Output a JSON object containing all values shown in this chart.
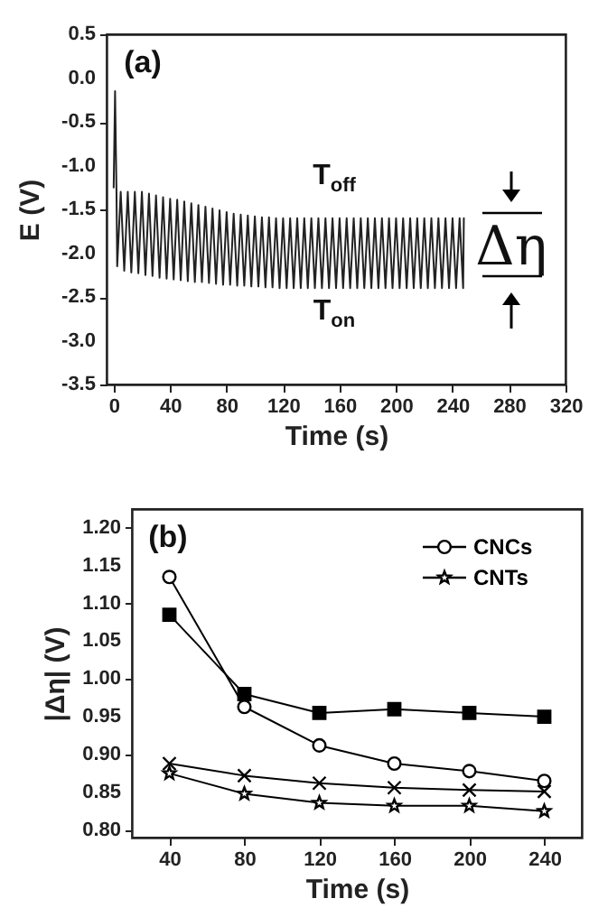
{
  "chart_data": [
    {
      "type": "line",
      "xlabel": "Time (s)",
      "ylabel": "E (V)",
      "xlim": [
        -5,
        320
      ],
      "ylim": [
        -3.5,
        0.5
      ],
      "xticks": [
        0,
        40,
        80,
        120,
        160,
        200,
        240,
        280,
        320
      ],
      "yticks": [
        -3.5,
        {
          "value": -3,
          "label": "-3.0"
        },
        -2.5,
        {
          "value": -2,
          "label": "-2.0"
        },
        -1.5,
        {
          "value": -1,
          "label": "-1.0"
        },
        -0.5,
        {
          "value": 0,
          "label": "0.0"
        },
        0.5
      ],
      "annotations": [
        "(a)",
        "T$_{off}$",
        "T$_{on}$",
        "Δη"
      ],
      "series": [
        {
          "color": "#222222",
          "x": [
            0,
            1,
            2,
            2.5,
            5,
            7.5,
            10,
            12.5,
            15,
            17.5,
            20,
            22.5,
            25,
            27.5,
            30,
            32.5,
            35,
            37.5,
            40,
            42.5,
            45,
            47.5,
            50,
            52.5,
            55,
            57.5,
            60,
            62.5,
            65,
            67.5,
            70,
            72.5,
            75,
            77.5,
            80,
            82.5,
            85,
            87.5,
            90,
            92.5,
            95,
            97.5,
            100,
            102.5,
            105,
            107.5,
            110,
            112.5,
            115,
            117.5,
            120,
            122.5,
            125,
            127.5,
            130,
            132.5,
            135,
            137.5,
            140,
            142.5,
            145,
            147.5,
            150,
            152.5,
            155,
            157.5,
            160,
            162.5,
            165,
            167.5,
            170,
            172.5,
            175,
            177.5,
            180,
            182.5,
            185,
            187.5,
            190,
            192.5,
            195,
            197.5,
            200,
            202.5,
            205,
            207.5,
            210,
            212.5,
            215,
            217.5,
            220,
            222.5,
            225,
            227.5,
            230,
            232.5,
            235,
            237.5,
            240,
            242.5,
            245,
            247.5,
            248
          ],
          "values": [
            -1.25,
            -0.15,
            -1.3,
            -2.15,
            -1.3,
            -2.2,
            -1.3,
            -2.22,
            -1.3,
            -2.23,
            -1.3,
            -2.25,
            -1.32,
            -2.26,
            -1.34,
            -2.28,
            -1.36,
            -2.29,
            -1.38,
            -2.3,
            -1.39,
            -2.31,
            -1.41,
            -2.32,
            -1.43,
            -2.33,
            -1.45,
            -2.33,
            -1.47,
            -2.34,
            -1.49,
            -2.35,
            -1.51,
            -2.36,
            -1.53,
            -2.36,
            -1.55,
            -2.37,
            -1.56,
            -2.37,
            -1.57,
            -2.38,
            -1.58,
            -2.38,
            -1.59,
            -2.39,
            -1.59,
            -2.39,
            -1.6,
            -2.4,
            -1.6,
            -2.4,
            -1.6,
            -2.4,
            -1.6,
            -2.4,
            -1.6,
            -2.4,
            -1.6,
            -2.4,
            -1.6,
            -2.4,
            -1.6,
            -2.4,
            -1.6,
            -2.4,
            -1.6,
            -2.4,
            -1.6,
            -2.4,
            -1.6,
            -2.4,
            -1.6,
            -2.4,
            -1.6,
            -2.4,
            -1.6,
            -2.4,
            -1.6,
            -2.4,
            -1.6,
            -2.4,
            -1.6,
            -2.4,
            -1.6,
            -2.4,
            -1.6,
            -2.4,
            -1.6,
            -2.4,
            -1.6,
            -2.4,
            -1.6,
            -2.4,
            -1.6,
            -2.4,
            -1.6,
            -2.4,
            -1.6,
            -2.4,
            -1.6,
            -2.4,
            -1.6
          ]
        }
      ]
    },
    {
      "type": "line",
      "xlabel": "Time (s)",
      "ylabel": "|Δη| (V)",
      "xlim": [
        20,
        260
      ],
      "ylim": [
        0.79,
        1.225
      ],
      "xticks": [
        40,
        80,
        120,
        160,
        200,
        240
      ],
      "yticks": [
        {
          "value": 0.8,
          "label": "0.80"
        },
        0.85,
        {
          "value": 0.9,
          "label": "0.90"
        },
        0.95,
        {
          "value": 1,
          "label": "1.00"
        },
        1.05,
        {
          "value": 1.1,
          "label": "1.10"
        },
        1.15,
        {
          "value": 1.2,
          "label": "1.20"
        }
      ],
      "x": [
        40,
        80,
        120,
        160,
        200,
        240
      ],
      "legend": "top right",
      "annotations": [
        "(b)"
      ],
      "series": [
        {
          "color": "#000000",
          "marker": "square",
          "values": [
            1.085,
            0.98,
            0.955,
            0.96,
            0.955,
            0.95
          ]
        },
        {
          "name": "CNCs",
          "color": "#000000",
          "marker": "circle",
          "values": [
            1.135,
            0.963,
            0.912,
            0.888,
            0.878,
            0.865
          ]
        },
        {
          "color": "#000000",
          "marker": "cross",
          "values": [
            0.888,
            0.872,
            0.862,
            0.856,
            0.853,
            0.851
          ]
        },
        {
          "name": "CNTs",
          "color": "#000000",
          "marker": "star",
          "values": [
            0.875,
            0.848,
            0.836,
            0.832,
            0.832,
            0.825
          ]
        }
      ]
    }
  ]
}
